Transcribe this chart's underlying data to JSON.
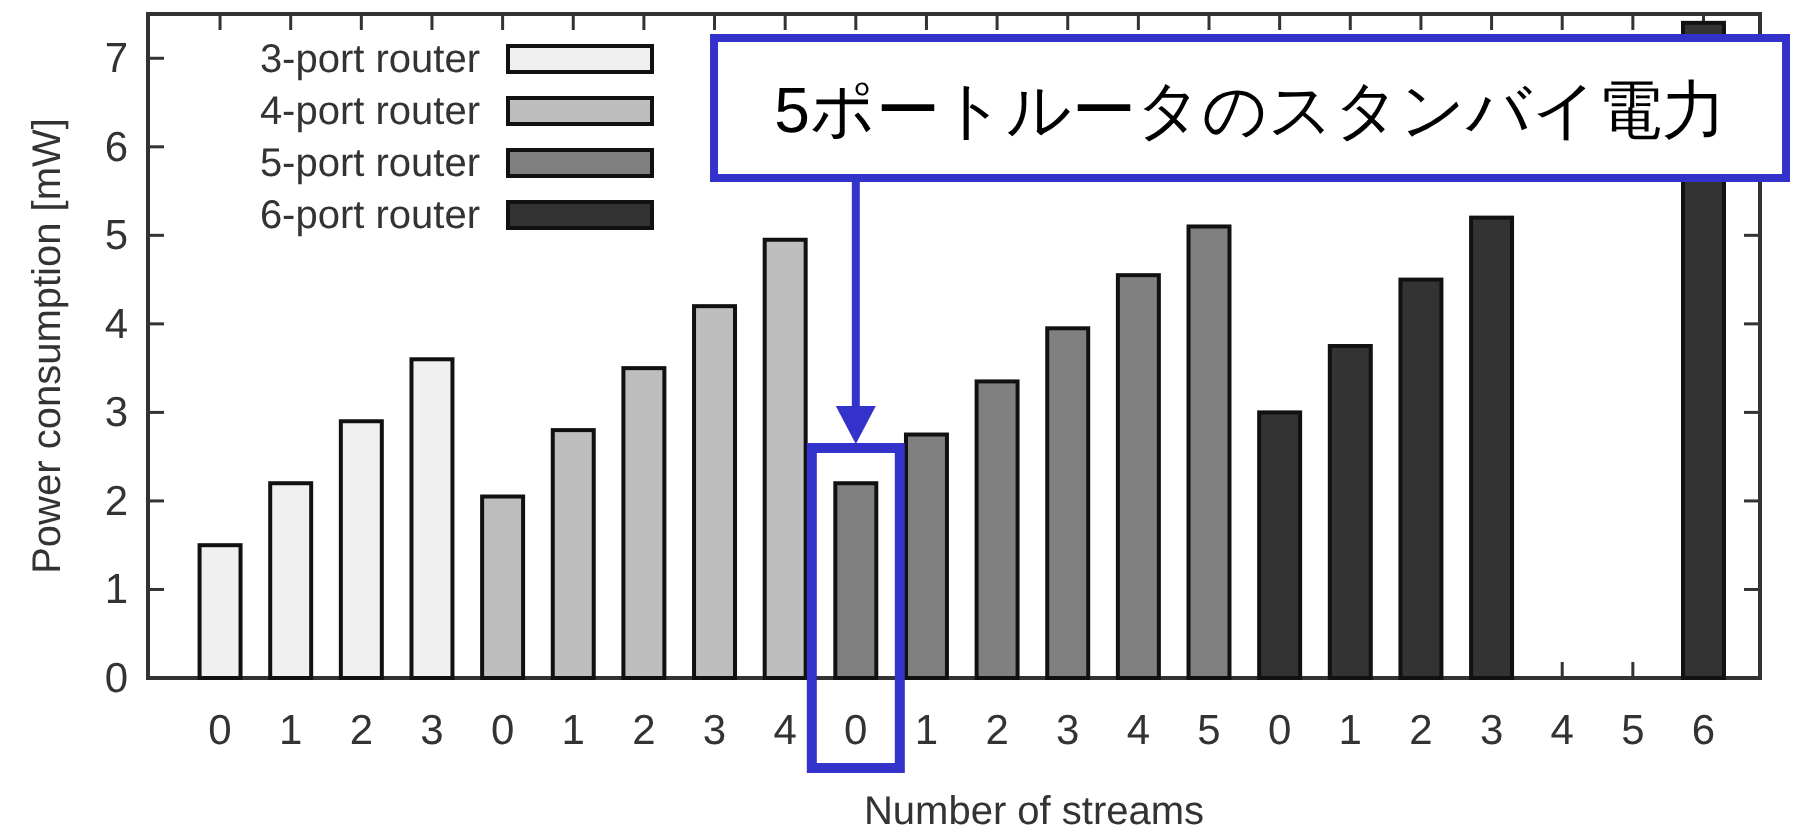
{
  "chart_data": {
    "type": "bar",
    "xlabel": "Number of streams",
    "ylabel": "Power consumption [mW]",
    "categories": [
      "0",
      "1",
      "2",
      "3",
      "0",
      "1",
      "2",
      "3",
      "4",
      "0",
      "1",
      "2",
      "3",
      "4",
      "5",
      "0",
      "1",
      "2",
      "3",
      "4",
      "5",
      "6"
    ],
    "series": [
      {
        "name": "3-port router",
        "color": "#f0f0f0",
        "values": [
          1.5,
          2.2,
          2.9,
          3.6,
          null,
          null,
          null,
          null,
          null,
          null,
          null,
          null,
          null,
          null,
          null,
          null,
          null,
          null,
          null,
          null,
          null,
          null
        ]
      },
      {
        "name": "4-port router",
        "color": "#bebebe",
        "values": [
          null,
          null,
          null,
          null,
          2.05,
          2.8,
          3.5,
          4.2,
          4.95,
          null,
          null,
          null,
          null,
          null,
          null,
          null,
          null,
          null,
          null,
          null,
          null,
          null
        ]
      },
      {
        "name": "5-port router",
        "color": "#808080",
        "values": [
          null,
          null,
          null,
          null,
          null,
          null,
          null,
          null,
          null,
          2.2,
          2.75,
          3.35,
          3.95,
          4.55,
          5.1,
          null,
          null,
          null,
          null,
          null,
          null,
          null
        ]
      },
      {
        "name": "6-port router",
        "color": "#333333",
        "values": [
          null,
          null,
          null,
          null,
          null,
          null,
          null,
          null,
          null,
          null,
          null,
          null,
          null,
          null,
          null,
          3.0,
          3.75,
          4.5,
          5.2,
          null,
          null,
          7.4
        ]
      }
    ],
    "ylim": [
      0,
      7.5
    ],
    "yticks": [
      0,
      1,
      2,
      3,
      4,
      5,
      6,
      7
    ],
    "legend": "top left",
    "grid": false,
    "annotations": [
      "5ポートルータのスタンバイ電力"
    ]
  }
}
